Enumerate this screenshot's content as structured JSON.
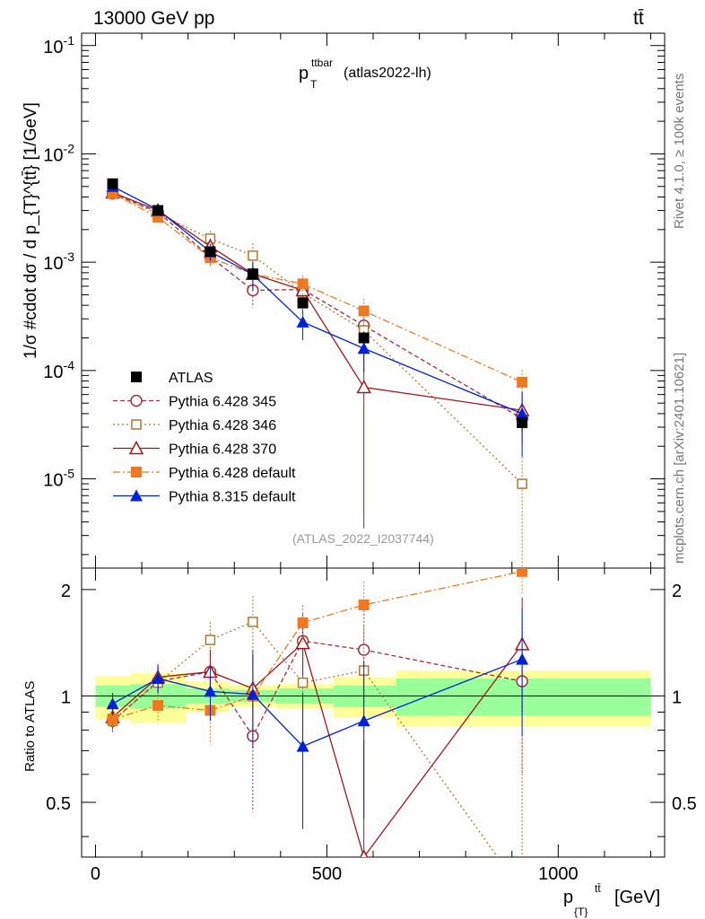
{
  "header": {
    "left": "13000 GeV pp",
    "right": "tt̄"
  },
  "side_text": {
    "rivet": "Rivet 4.1.0, ≥ 100k events",
    "mcplots": "mcplots.cern.ch [arXiv:2401.10621]"
  },
  "chart_data": {
    "type": "line",
    "title_main": "p",
    "title_sup": "ttbar",
    "title_sub": "T",
    "title_suffix": "(atlas2022-lh)",
    "reference": "(ATLAS_2022_I2037744)",
    "xlabel": {
      "main": "p",
      "sub": "{T}",
      "sup": "tt̄",
      "unit": "[GeV]"
    },
    "ylabel": "1/σ #cdot dσ / d p_{T}^{tt̄} [1/GeV]",
    "ratio_ylabel": "Ratio to ATLAS",
    "xlim": [
      -30,
      1230
    ],
    "ylim_log": [
      1.5e-06,
      0.13
    ],
    "ratio_ylim": [
      0.35,
      2.3
    ],
    "x_ticks": [
      0,
      500,
      1000
    ],
    "y_tick_labels": [
      "10^-1",
      "10^-2",
      "10^-3",
      "10^-4",
      "10^-5"
    ],
    "ratio_tick_labels": [
      "0.5",
      "1",
      "2"
    ],
    "x": [
      37,
      135,
      248,
      340,
      448,
      580,
      922
    ],
    "bin_edges": [
      0,
      75,
      195,
      290,
      390,
      515,
      650,
      1200
    ],
    "band_outer": [
      0.14,
      0.16,
      0.1,
      0.07,
      0.08,
      0.13,
      0.18
    ],
    "band_inner": [
      0.07,
      0.08,
      0.05,
      0.04,
      0.05,
      0.07,
      0.12
    ],
    "series": [
      {
        "name": "ATLAS",
        "color": "#000000",
        "marker": "square-filled",
        "dash": "none",
        "values": [
          0.0053,
          0.003,
          0.00125,
          0.00078,
          0.00042,
          0.0002,
          3.3e-05
        ],
        "err": [
          0.04,
          0.04,
          0.05,
          0.06,
          0.08,
          0.1,
          0.15
        ],
        "ratio": [
          1,
          1,
          1,
          1,
          1,
          1,
          1
        ],
        "ratio_err": [
          0,
          0,
          0,
          0,
          0,
          0,
          0
        ]
      },
      {
        "name": "Pythia 6.428 345",
        "color": "#a03040",
        "marker": "circle-open",
        "dash": "5,3",
        "values": [
          0.0043,
          0.0029,
          0.00112,
          0.00055,
          0.00056,
          0.00026,
          3.6e-05
        ],
        "err": [
          0.07,
          0.1,
          0.18,
          0.3,
          0.28,
          0.4,
          0.5
        ],
        "ratio": [
          0.85,
          1.1,
          1.17,
          0.77,
          1.43,
          1.35,
          1.1
        ],
        "ratio_err": [
          0.07,
          0.1,
          0.18,
          0.3,
          0.28,
          0.4,
          0.5
        ]
      },
      {
        "name": "Pythia 6.428 346",
        "color": "#b07830",
        "marker": "square-open",
        "dash": "2,3",
        "values": [
          0.0043,
          0.0028,
          0.00165,
          0.00115,
          0.00052,
          0.000235,
          9e-06
        ],
        "err": [
          0.07,
          0.1,
          0.18,
          0.3,
          0.28,
          0.4,
          0.9
        ],
        "ratio": [
          0.85,
          1.09,
          1.44,
          1.62,
          1.09,
          1.18,
          0.28
        ],
        "ratio_err": [
          0.07,
          0.1,
          0.18,
          0.3,
          0.28,
          0.4,
          0.5
        ]
      },
      {
        "name": "Pythia 6.428 370",
        "color": "#a01818",
        "marker": "triangle-open",
        "dash": "none",
        "values": [
          0.0044,
          0.003,
          0.0014,
          0.00078,
          0.00055,
          7e-05,
          4.3e-05
        ],
        "err": [
          0.07,
          0.1,
          0.18,
          0.3,
          0.28,
          2.3,
          0.5
        ],
        "ratio": [
          0.87,
          1.13,
          1.17,
          1.05,
          1.41,
          0.35,
          1.4
        ],
        "ratio_err": [
          0.07,
          0.1,
          0.18,
          0.3,
          0.28,
          0.4,
          0.5
        ]
      },
      {
        "name": "Pythia 6.428 default",
        "color": "#f07820",
        "marker": "square-filled",
        "dash": "8,3,2,3",
        "values": [
          0.0043,
          0.0026,
          0.0011,
          0.00078,
          0.00063,
          0.000355,
          7.8e-05
        ],
        "err": [
          0.07,
          0.1,
          0.18,
          0.25,
          0.2,
          0.3,
          0.3
        ],
        "ratio": [
          0.86,
          0.94,
          0.91,
          1.0,
          1.61,
          1.81,
          2.25
        ],
        "ratio_err": [
          0.07,
          0.1,
          0.18,
          0.25,
          0.2,
          0.3,
          0.3
        ]
      },
      {
        "name": "Pythia 8.315 default",
        "color": "#0020e0",
        "marker": "triangle-filled",
        "dash": "none",
        "values": [
          0.005,
          0.00305,
          0.00125,
          0.00077,
          0.00028,
          0.00016,
          4e-05
        ],
        "err": [
          0.07,
          0.1,
          0.18,
          0.3,
          0.32,
          0.4,
          0.6
        ],
        "ratio": [
          0.95,
          1.12,
          1.03,
          1.01,
          0.72,
          0.85,
          1.27
        ],
        "ratio_err": [
          0.07,
          0.1,
          0.18,
          0.3,
          0.3,
          0.4,
          0.5
        ]
      }
    ]
  }
}
